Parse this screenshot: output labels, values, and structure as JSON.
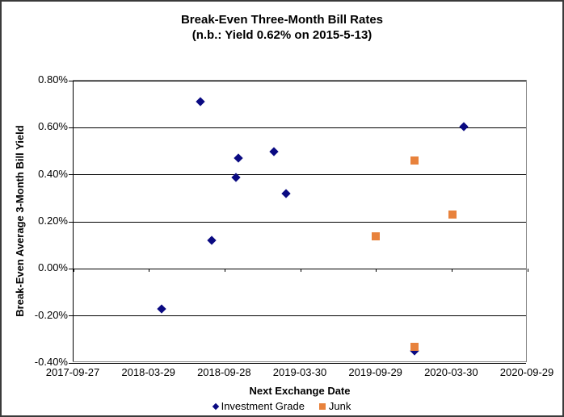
{
  "title": {
    "line1": "Break-Even Three-Month Bill Rates",
    "line2": "(n.b.: Yield 0.62% on 2015-5-13)"
  },
  "axes": {
    "x_title": "Next Exchange Date",
    "y_title": "Break-Even Average 3-Month Bill Yield"
  },
  "colors": {
    "investment_grade": "#0a0a82",
    "junk": "#e8823c",
    "gridline": "#000000",
    "plot_border": "#888888",
    "outer_border": "#3a3a3a",
    "background": "#ffffff"
  },
  "chart_data": {
    "type": "scatter",
    "grid": true,
    "legend_position": "bottom",
    "xlim": [
      "2017-09-27",
      "2020-09-29"
    ],
    "ylim_percent": [
      -0.4,
      0.8
    ],
    "xticks": [
      "2017-09-27",
      "2018-03-29",
      "2018-09-28",
      "2019-03-30",
      "2019-09-29",
      "2020-03-30",
      "2020-09-29"
    ],
    "ytick_labels": [
      "0.80%",
      "0.60%",
      "0.40%",
      "0.20%",
      "0.00%",
      "-0.20%",
      "-0.40%"
    ],
    "ytick_values": [
      0.8,
      0.6,
      0.4,
      0.2,
      0.0,
      -0.2,
      -0.4
    ],
    "series": [
      {
        "name": "Investment Grade",
        "marker": "diamond",
        "color": "#0a0a82",
        "points": [
          {
            "x": "2018-04-28",
            "y": -0.17
          },
          {
            "x": "2018-07-31",
            "y": 0.71
          },
          {
            "x": "2018-08-27",
            "y": 0.12
          },
          {
            "x": "2018-10-25",
            "y": 0.39
          },
          {
            "x": "2018-10-31",
            "y": 0.47
          },
          {
            "x": "2019-01-25",
            "y": 0.5
          },
          {
            "x": "2019-02-23",
            "y": 0.32
          },
          {
            "x": "2019-12-30",
            "y": -0.35
          },
          {
            "x": "2020-04-28",
            "y": 0.605
          }
        ]
      },
      {
        "name": "Junk",
        "marker": "square",
        "color": "#e8823c",
        "points": [
          {
            "x": "2019-09-28",
            "y": 0.14
          },
          {
            "x": "2019-12-30",
            "y": 0.46
          },
          {
            "x": "2019-12-30",
            "y": -0.33
          },
          {
            "x": "2020-03-31",
            "y": 0.23
          }
        ]
      }
    ]
  }
}
